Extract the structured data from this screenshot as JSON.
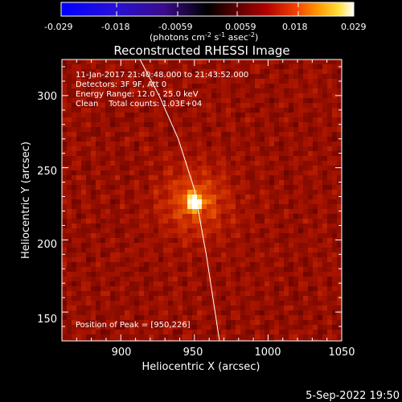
{
  "colorbar": {
    "min": -0.029,
    "max": 0.029,
    "tick_labels": [
      "-0.029",
      "-0.018",
      "-0.0059",
      "0.0059",
      "0.018",
      "0.029"
    ],
    "unit_main": "(photons cm",
    "unit_exp1": "-2",
    "unit_s": " s",
    "unit_exp2": "-1",
    "unit_asec": " asec",
    "unit_exp3": "-2",
    "unit_close": ")"
  },
  "chart_data": {
    "type": "heatmap",
    "title": "Reconstructed RHESSI Image",
    "xlabel": "Heliocentric X (arcsec)",
    "ylabel": "Heliocentric Y (arcsec)",
    "xlim": [
      860,
      1050
    ],
    "ylim": [
      130,
      325
    ],
    "x_ticks": [
      900,
      950,
      1000,
      1050
    ],
    "y_ticks": [
      150,
      200,
      250,
      300
    ],
    "x_tick_labels": [
      "900",
      "950",
      "1000",
      "1050"
    ],
    "y_tick_labels": [
      "150",
      "200",
      "250",
      "300"
    ],
    "peak": {
      "x": 950,
      "y": 226,
      "value": 0.029
    },
    "limb": [
      [
        913,
        325
      ],
      [
        926,
        300
      ],
      [
        939,
        270
      ],
      [
        950,
        235
      ],
      [
        958,
        190
      ],
      [
        964,
        150
      ],
      [
        967,
        130
      ]
    ],
    "annotations": [
      "11-Jan-2017 21:40:48.000 to 21:43:52.000",
      "Detectors: 3F 9F, Att 0",
      "Energy Range: 12.0 - 25.0 keV",
      "Clean    Total counts: 1.03E+04"
    ],
    "peak_label": "Position of Peak = [950,226]",
    "colormap": "std-gamma-2 (black-red-orange-yellow-white)"
  },
  "timestamp": "5-Sep-2022 19:50"
}
